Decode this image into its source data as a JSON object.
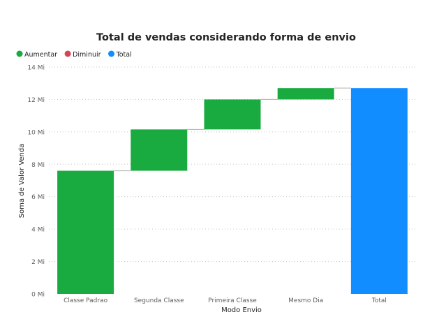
{
  "chart_data": {
    "type": "bar",
    "title": "Total de vendas considerando forma de envio",
    "xlabel": "Modo Envio",
    "ylabel": "Soma de Valor Venda",
    "ylim": [
      0,
      14
    ],
    "y_unit": "Mi",
    "y_ticks": [
      "0 Mi",
      "2 Mi",
      "4 Mi",
      "6 Mi",
      "8 Mi",
      "10 Mi",
      "12 Mi",
      "14 Mi"
    ],
    "grid": true,
    "legend_position": "top-left",
    "legend": [
      {
        "label": "Aumentar",
        "color": "#1aab40"
      },
      {
        "label": "Diminuir",
        "color": "#d64554"
      },
      {
        "label": "Total",
        "color": "#118dff"
      }
    ],
    "categories": [
      "Classe Padrao",
      "Segunda Classe",
      "Primeira Classe",
      "Mesmo Dia",
      "Total"
    ],
    "values": [
      7.6,
      2.55,
      1.85,
      0.7,
      12.7
    ],
    "kind": [
      "increase",
      "increase",
      "increase",
      "increase",
      "total"
    ]
  }
}
